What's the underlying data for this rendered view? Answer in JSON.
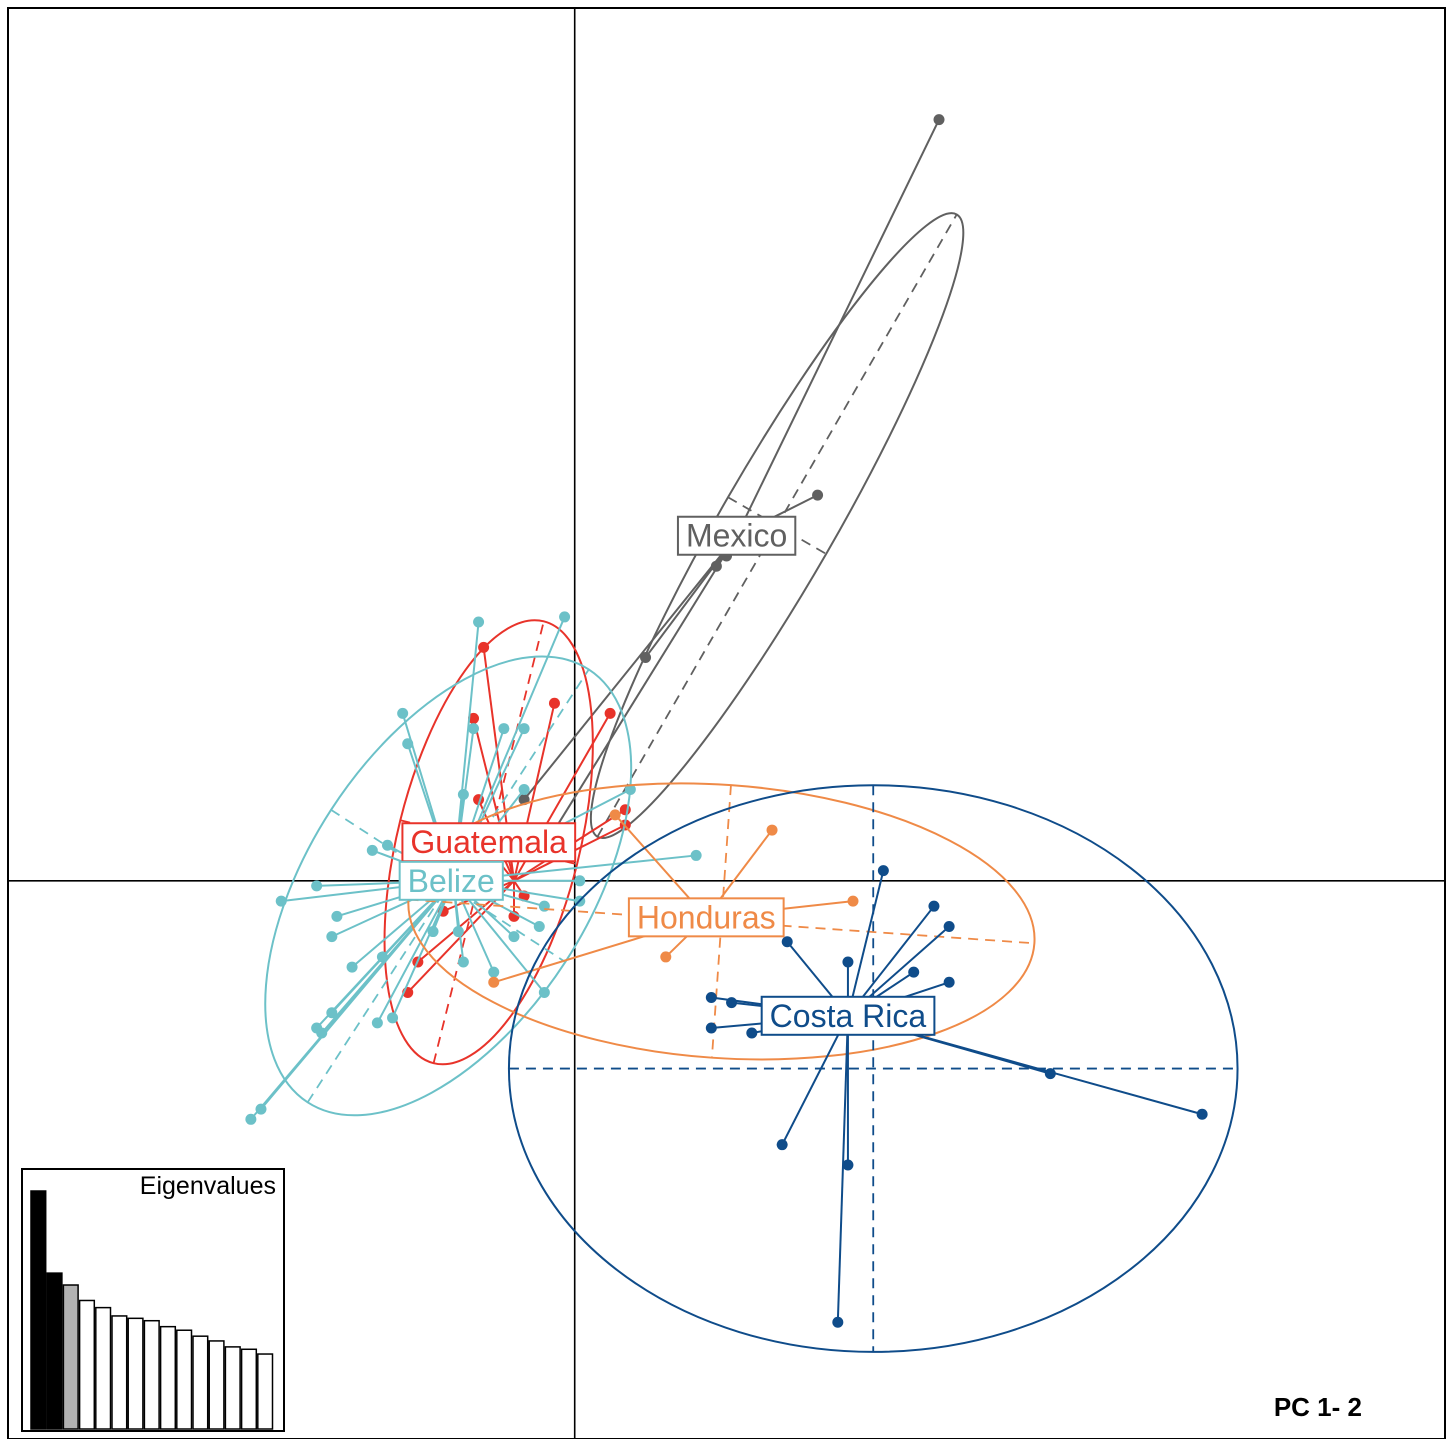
{
  "chart_data": {
    "type": "scatter",
    "subtype": "dapc-scatter",
    "title": "",
    "xlabel": "",
    "ylabel": "",
    "xlim": [
      -5.6,
      8.6
    ],
    "ylim": [
      -5.5,
      8.6
    ],
    "axes_cross_at": [
      0,
      0
    ],
    "grid": false,
    "panel_label": "PC 1- 2",
    "groups": [
      {
        "name": "Mexico",
        "color": "#606060",
        "centroid": [
          1.6,
          3.4
        ],
        "label_pos": [
          1.6,
          3.4
        ],
        "ellipse": {
          "center": [
            2.0,
            3.5
          ],
          "rx": 3.55,
          "ry": 0.56,
          "angle": 60
        },
        "points": [
          [
            3.6,
            7.5
          ],
          [
            2.4,
            3.8
          ],
          [
            1.5,
            3.2
          ],
          [
            1.4,
            3.1
          ],
          [
            0.7,
            2.2
          ],
          [
            -0.5,
            0.8
          ],
          [
            -0.2,
            0.5
          ]
        ]
      },
      {
        "name": "Guatemala",
        "color": "#e8332a",
        "centroid": [
          -0.6,
          0.0
        ],
        "label_pos": [
          -0.85,
          0.38
        ],
        "ellipse": {
          "center": [
            -0.85,
            0.38
          ],
          "rx": 2.25,
          "ry": 0.9,
          "angle": 76
        },
        "points": [
          [
            -0.9,
            2.3
          ],
          [
            -1.0,
            1.6
          ],
          [
            -0.2,
            1.75
          ],
          [
            0.35,
            1.65
          ],
          [
            0.5,
            0.7
          ],
          [
            0.5,
            0.55
          ],
          [
            -1.0,
            0.5
          ],
          [
            -0.95,
            0.8
          ],
          [
            -1.3,
            -0.3
          ],
          [
            -1.55,
            -0.8
          ],
          [
            -1.65,
            -1.1
          ],
          [
            -0.5,
            -0.15
          ],
          [
            -0.6,
            -0.35
          ]
        ]
      },
      {
        "name": "Belize",
        "color": "#6cc1c8",
        "centroid": [
          -1.2,
          0.0
        ],
        "label_pos": [
          -1.22,
          0.0
        ],
        "ellipse": {
          "center": [
            -1.25,
            -0.05
          ],
          "rx": 2.55,
          "ry": 1.38,
          "angle": 57
        },
        "points": [
          [
            -0.95,
            2.55
          ],
          [
            -0.1,
            2.6
          ],
          [
            -1.7,
            1.65
          ],
          [
            -1.65,
            1.35
          ],
          [
            -1.0,
            1.5
          ],
          [
            -0.7,
            1.5
          ],
          [
            -0.5,
            1.5
          ],
          [
            -0.5,
            0.9
          ],
          [
            -1.1,
            0.85
          ],
          [
            -1.85,
            0.35
          ],
          [
            -2.0,
            0.3
          ],
          [
            -2.55,
            -0.05
          ],
          [
            -2.9,
            -0.2
          ],
          [
            -2.35,
            -0.35
          ],
          [
            -2.4,
            -0.55
          ],
          [
            -2.2,
            -0.85
          ],
          [
            -1.9,
            -0.75
          ],
          [
            -1.4,
            -0.5
          ],
          [
            -1.15,
            -0.5
          ],
          [
            -1.1,
            -0.8
          ],
          [
            -0.8,
            -0.9
          ],
          [
            -0.6,
            -0.55
          ],
          [
            -0.35,
            -0.45
          ],
          [
            -0.3,
            -1.1
          ],
          [
            -2.4,
            -1.3
          ],
          [
            -1.95,
            -1.4
          ],
          [
            -1.8,
            -1.35
          ],
          [
            -2.5,
            -1.5
          ],
          [
            -3.2,
            -2.35
          ],
          [
            -3.1,
            -2.25
          ],
          [
            -2.55,
            -1.45
          ],
          [
            0.55,
            0.9
          ],
          [
            1.2,
            0.25
          ],
          [
            0.05,
            -0.0
          ],
          [
            0.05,
            -0.2
          ],
          [
            -0.3,
            -0.25
          ]
        ]
      },
      {
        "name": "Honduras",
        "color": "#ef8a47",
        "centroid": [
          1.3,
          -0.36
        ],
        "label_pos": [
          1.3,
          -0.36
        ],
        "ellipse": {
          "center": [
            1.45,
            -0.4
          ],
          "rx": 3.1,
          "ry": 1.35,
          "angle": -4
        },
        "points": [
          [
            0.4,
            0.65
          ],
          [
            1.95,
            0.5
          ],
          [
            2.75,
            -0.2
          ],
          [
            0.9,
            -0.75
          ],
          [
            -0.8,
            -1.0
          ]
        ]
      },
      {
        "name": "Costa Rica",
        "color": "#0f4c8a",
        "centroid": [
          2.7,
          -1.33
        ],
        "label_pos": [
          2.7,
          -1.33
        ],
        "ellipse": {
          "center": [
            2.95,
            -1.85
          ],
          "rx": 3.6,
          "ry": 2.8,
          "angle": 0
        },
        "points": [
          [
            3.05,
            0.1
          ],
          [
            3.55,
            -0.25
          ],
          [
            3.7,
            -0.45
          ],
          [
            3.35,
            -0.9
          ],
          [
            3.7,
            -1.0
          ],
          [
            2.7,
            -0.8
          ],
          [
            2.1,
            -0.6
          ],
          [
            1.35,
            -1.15
          ],
          [
            1.55,
            -1.2
          ],
          [
            1.35,
            -1.45
          ],
          [
            1.75,
            -1.5
          ],
          [
            4.7,
            -1.9
          ],
          [
            6.2,
            -2.3
          ],
          [
            2.05,
            -2.6
          ],
          [
            2.7,
            -2.8
          ],
          [
            2.6,
            -4.35
          ]
        ]
      }
    ],
    "eigenvalues": {
      "title": "Eigenvalues",
      "values": [
        1.0,
        0.655,
        0.605,
        0.54,
        0.51,
        0.475,
        0.465,
        0.455,
        0.43,
        0.415,
        0.39,
        0.37,
        0.345,
        0.335,
        0.315
      ],
      "fills": [
        "#000000",
        "#000000",
        "#b2b2b2",
        "#ffffff",
        "#ffffff",
        "#ffffff",
        "#ffffff",
        "#ffffff",
        "#ffffff",
        "#ffffff",
        "#ffffff",
        "#ffffff",
        "#ffffff",
        "#ffffff",
        "#ffffff"
      ]
    }
  }
}
